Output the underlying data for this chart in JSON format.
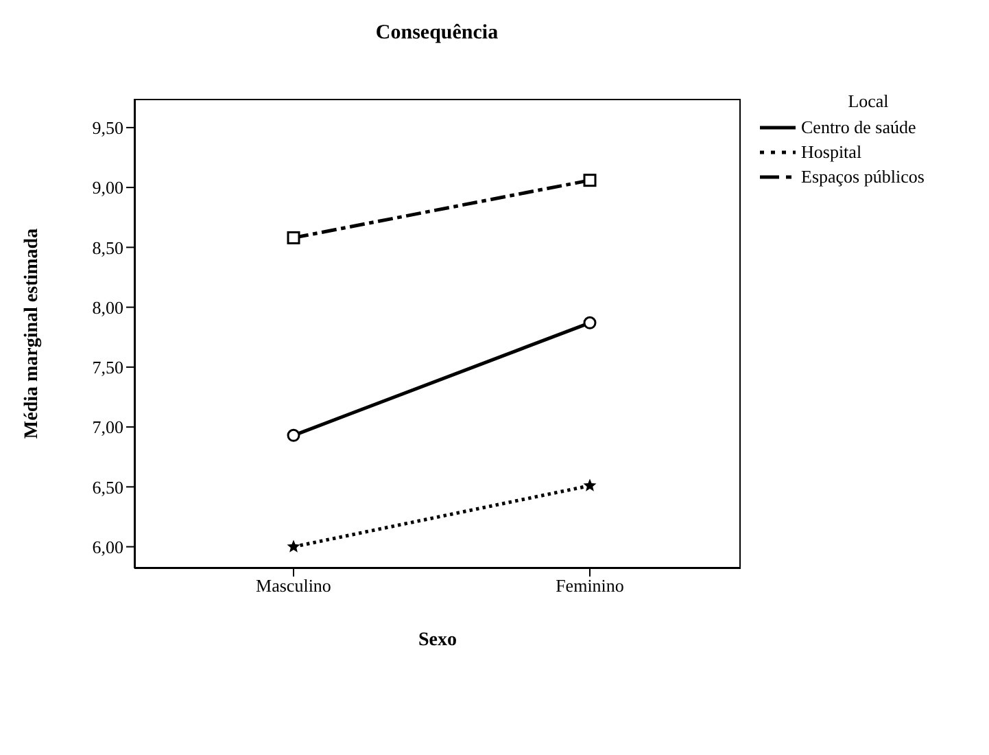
{
  "chart_data": {
    "type": "line",
    "title": "Consequência",
    "xlabel": "Sexo",
    "ylabel": "Média marginal estimada",
    "legend_title": "Local",
    "categories": [
      "Masculino",
      "Feminino"
    ],
    "series": [
      {
        "name": "Centro de saúde",
        "color": "#000000",
        "values": [
          6.93,
          7.87
        ],
        "marker": "circle",
        "line_style": "solid"
      },
      {
        "name": "Hospital",
        "color": "#000000",
        "values": [
          6.0,
          6.51
        ],
        "marker": "star",
        "line_style": "dotted"
      },
      {
        "name": "Espaços públicos",
        "color": "#000000",
        "values": [
          8.58,
          9.06
        ],
        "marker": "square",
        "line_style": "dashed"
      }
    ],
    "ylim": [
      5.82,
      9.74
    ],
    "yticks": [
      {
        "value": 6,
        "label": "6,00"
      },
      {
        "value": 6.5,
        "label": "6,50"
      },
      {
        "value": 7,
        "label": "7,00"
      },
      {
        "value": 7.5,
        "label": "7,50"
      },
      {
        "value": 8,
        "label": "8,00"
      },
      {
        "value": 8.5,
        "label": "8,50"
      },
      {
        "value": 9,
        "label": "9,00"
      },
      {
        "value": 9.5,
        "label": "9,50"
      }
    ],
    "grid": false,
    "legend": "top right"
  }
}
